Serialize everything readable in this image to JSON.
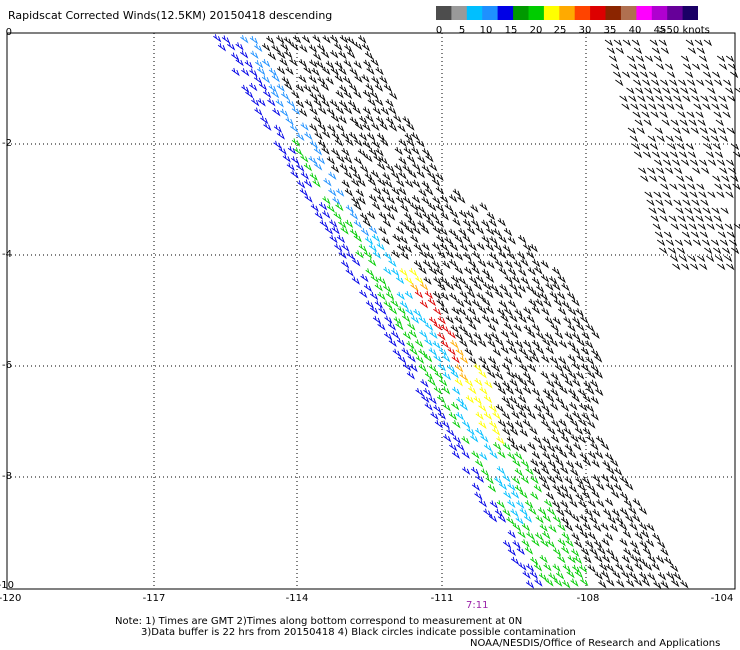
{
  "title": "Rapidscat Corrected Winds(12.5KM) 20150418 descending",
  "colorbar": {
    "colors": [
      "#4d4d4d",
      "#9a9a9a",
      "#00bfff",
      "#1e90ff",
      "#0000e6",
      "#009900",
      "#00cc00",
      "#ffff00",
      "#ffaa00",
      "#ff4400",
      "#dd0000",
      "#8b2500",
      "#b07050",
      "#ff00ff",
      "#b000d0",
      "#660099",
      "#1a0066"
    ],
    "labels": [
      "0",
      "5",
      "10",
      "15",
      "20",
      "25",
      "30",
      "35",
      "40",
      "45",
      ">50 knots"
    ]
  },
  "axes": {
    "y_ticks": [
      "0",
      "-2",
      "-4",
      "-6",
      "-8",
      "-10"
    ],
    "x_ticks": [
      "-120",
      "-117",
      "-114",
      "-111",
      "-108",
      "-104"
    ],
    "time_label": "7:11"
  },
  "notes": [
    "Note: 1) Times are GMT 2)Times along bottom correspond to measurement at 0N",
    "3)Data buffer is 22 hrs from 20150418 4) Black circles indicate possible contamination",
    "NOAA/NESDIS/Office of Research and Applications"
  ],
  "map": {
    "lon_range": [
      -120,
      -104
    ],
    "lat_range": [
      -10,
      0
    ]
  }
}
